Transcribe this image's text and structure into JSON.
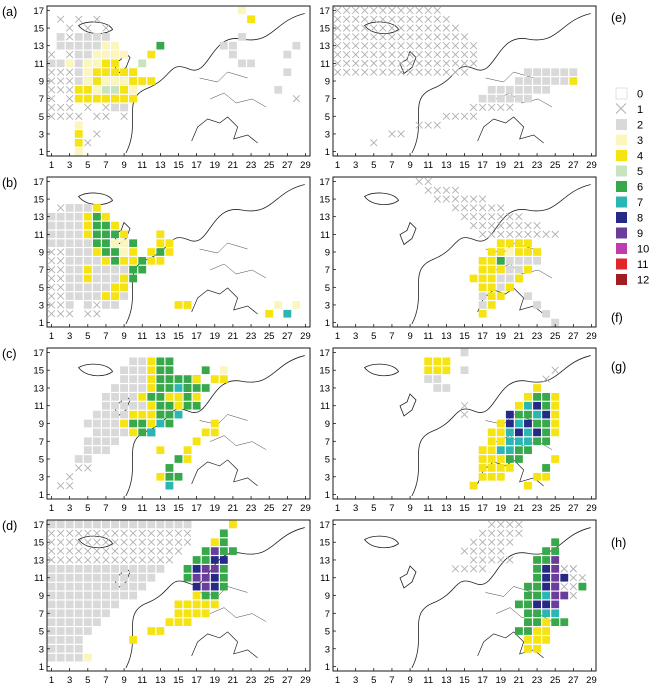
{
  "chart_data": {
    "type": "heatmap",
    "xlim": [
      1,
      29
    ],
    "ylim": [
      1,
      17
    ],
    "x_ticks": [
      "1",
      "3",
      "5",
      "7",
      "9",
      "11",
      "13",
      "15",
      "17",
      "19",
      "21",
      "23",
      "25",
      "27",
      "29"
    ],
    "y_ticks": [
      "1",
      "3",
      "5",
      "7",
      "9",
      "11",
      "13",
      "15",
      "17"
    ],
    "legend": {
      "position": "right",
      "entries": [
        {
          "label": "0",
          "color": "#ffffff",
          "marker": "none"
        },
        {
          "label": "1",
          "color": "#ffffff",
          "marker": "cross"
        },
        {
          "label": "2",
          "color": "#d9d9d9",
          "marker": "square"
        },
        {
          "label": "3",
          "color": "#fbf5be",
          "marker": "square"
        },
        {
          "label": "4",
          "color": "#f6e312",
          "marker": "square"
        },
        {
          "label": "5",
          "color": "#c7e3c0",
          "marker": "square"
        },
        {
          "label": "6",
          "color": "#37a94a",
          "marker": "square"
        },
        {
          "label": "7",
          "color": "#2ab7b4",
          "marker": "square"
        },
        {
          "label": "8",
          "color": "#262a86",
          "marker": "square"
        },
        {
          "label": "9",
          "color": "#6a3d9a",
          "marker": "square"
        },
        {
          "label": "10",
          "color": "#c13bb0",
          "marker": "square"
        },
        {
          "label": "11",
          "color": "#e2272c",
          "marker": "square"
        },
        {
          "label": "12",
          "color": "#a11d22",
          "marker": "square"
        }
      ]
    },
    "panels": [
      {
        "label": "(a)",
        "cells": [
          [
            1,
            5,
            "1111011010"
          ],
          [
            1,
            6,
            "111010122"
          ],
          [
            1,
            7,
            "1010112244"
          ],
          [
            1,
            8,
            "1111221244"
          ],
          [
            1,
            9,
            "1112252244"
          ],
          [
            1,
            10,
            "1112323334"
          ],
          [
            1,
            11,
            "2232334"
          ],
          [
            1,
            12,
            "10122334"
          ],
          [
            2,
            13,
            "2222233"
          ],
          [
            2,
            14,
            "212222"
          ],
          [
            3,
            15,
            "10101"
          ],
          [
            2,
            16,
            "10101"
          ],
          [
            3,
            1,
            "03"
          ],
          [
            3,
            2,
            "04"
          ],
          [
            3,
            3,
            "04"
          ],
          [
            4,
            4,
            "3"
          ],
          [
            5,
            2,
            "1"
          ],
          [
            6,
            3,
            "10"
          ],
          [
            7,
            4,
            "0"
          ],
          [
            4,
            7,
            "44444"
          ],
          [
            4,
            8,
            "4435543"
          ],
          [
            5,
            9,
            "34335444"
          ],
          [
            6,
            10,
            "44443"
          ],
          [
            7,
            11,
            "44"
          ],
          [
            8,
            12,
            "33"
          ],
          [
            9,
            9,
            "3"
          ],
          [
            10,
            10,
            "4"
          ],
          [
            11,
            11,
            "5"
          ],
          [
            12,
            12,
            "4"
          ],
          [
            13,
            13,
            "6"
          ],
          [
            21,
            12,
            "2"
          ],
          [
            20,
            13,
            "22"
          ],
          [
            22,
            14,
            "2"
          ],
          [
            28,
            7,
            "1"
          ],
          [
            26,
            8,
            "2"
          ],
          [
            27,
            10,
            "2"
          ],
          [
            27,
            12,
            "2"
          ],
          [
            28,
            13,
            "2"
          ],
          [
            22,
            17,
            "3"
          ],
          [
            22,
            11,
            "22"
          ],
          [
            23,
            16,
            "4"
          ]
        ]
      },
      {
        "label": "(b)",
        "cells": [
          [
            1,
            2,
            "111011"
          ],
          [
            1,
            3,
            "11202122"
          ],
          [
            1,
            4,
            "112222422"
          ],
          [
            1,
            5,
            "112222244"
          ],
          [
            1,
            6,
            "1122422242"
          ],
          [
            1,
            7,
            "1122422224"
          ],
          [
            1,
            8,
            "1122224644"
          ],
          [
            1,
            9,
            "1122246634"
          ],
          [
            1,
            10,
            "2222266336"
          ],
          [
            1,
            11,
            "222246664"
          ],
          [
            1,
            12,
            "22224664"
          ],
          [
            1,
            13,
            "2222464"
          ],
          [
            2,
            14,
            "12224"
          ],
          [
            8,
            5,
            "44"
          ],
          [
            9,
            6,
            "46"
          ],
          [
            10,
            7,
            "66"
          ],
          [
            11,
            8,
            "644"
          ],
          [
            12,
            9,
            "464"
          ],
          [
            13,
            10,
            "44"
          ],
          [
            13,
            11,
            "4"
          ],
          [
            7,
            4,
            "44"
          ],
          [
            15,
            3,
            "44"
          ],
          [
            16,
            3,
            "4"
          ],
          [
            25,
            2,
            "4"
          ],
          [
            26,
            3,
            "3"
          ],
          [
            27,
            2,
            "7"
          ],
          [
            28,
            3,
            "3"
          ]
        ]
      },
      {
        "label": "(c)",
        "cells": [
          [
            2,
            2,
            "11"
          ],
          [
            3,
            3,
            "1"
          ],
          [
            4,
            4,
            "11"
          ],
          [
            4,
            5,
            "22"
          ],
          [
            5,
            6,
            "222"
          ],
          [
            5,
            7,
            "2222"
          ],
          [
            6,
            8,
            "22224"
          ],
          [
            5,
            9,
            "2222466"
          ],
          [
            6,
            10,
            "22224446"
          ],
          [
            7,
            11,
            "222224664"
          ],
          [
            7,
            12,
            "2222466466"
          ],
          [
            8,
            13,
            "2222466786"
          ],
          [
            9,
            14,
            "222466666"
          ],
          [
            9,
            15,
            "222466"
          ],
          [
            10,
            16,
            "22466"
          ],
          [
            13,
            3,
            "466"
          ],
          [
            14,
            4,
            "6"
          ],
          [
            15,
            5,
            "64"
          ],
          [
            16,
            6,
            "4"
          ],
          [
            17,
            7,
            "4"
          ],
          [
            18,
            8,
            "44"
          ],
          [
            19,
            9,
            "4"
          ],
          [
            14,
            2,
            "7"
          ],
          [
            13,
            6,
            "4"
          ],
          [
            12,
            8,
            "8"
          ],
          [
            14,
            9,
            "6"
          ],
          [
            15,
            10,
            "7"
          ],
          [
            16,
            11,
            "66"
          ],
          [
            17,
            12,
            "4"
          ],
          [
            18,
            13,
            "6"
          ],
          [
            19,
            14,
            "44"
          ],
          [
            20,
            15,
            "3"
          ],
          [
            11,
            8,
            "67"
          ],
          [
            12,
            9,
            "47"
          ],
          [
            13,
            10,
            "66"
          ],
          [
            14,
            11,
            "64"
          ],
          [
            15,
            12,
            "4"
          ],
          [
            16,
            13,
            "6"
          ],
          [
            17,
            14,
            "4"
          ],
          [
            18,
            15,
            "6"
          ]
        ]
      },
      {
        "label": "(d)",
        "cells": [
          [
            1,
            2,
            "2222"
          ],
          [
            1,
            3,
            "2222"
          ],
          [
            1,
            4,
            "2222"
          ],
          [
            1,
            5,
            "22222"
          ],
          [
            1,
            6,
            "222222"
          ],
          [
            1,
            7,
            "2222222"
          ],
          [
            1,
            8,
            "22222222"
          ],
          [
            1,
            9,
            "2222222222"
          ],
          [
            1,
            10,
            "22222222222"
          ],
          [
            1,
            11,
            "222222222222"
          ],
          [
            1,
            12,
            "2222222222222"
          ],
          [
            1,
            13,
            "11111111111111"
          ],
          [
            1,
            14,
            "111111111111111"
          ],
          [
            1,
            15,
            "1111111111111111"
          ],
          [
            1,
            16,
            "1111111111111111"
          ],
          [
            1,
            17,
            "2222222222222222"
          ],
          [
            5,
            2,
            "3"
          ],
          [
            10,
            4,
            "4"
          ],
          [
            12,
            5,
            "44"
          ],
          [
            14,
            6,
            "444"
          ],
          [
            15,
            7,
            "4444"
          ],
          [
            15,
            8,
            "44444"
          ],
          [
            17,
            9,
            "466"
          ],
          [
            17,
            10,
            "8986"
          ],
          [
            16,
            11,
            "69986"
          ],
          [
            16,
            12,
            "68996"
          ],
          [
            17,
            13,
            "6688"
          ],
          [
            18,
            14,
            "6966"
          ],
          [
            19,
            15,
            "46"
          ],
          [
            20,
            16,
            "6"
          ],
          [
            21,
            17,
            "4"
          ]
        ]
      },
      {
        "label": "(e)",
        "cells": [
          [
            1,
            10,
            "111111111111111"
          ],
          [
            1,
            11,
            "1111111111111111"
          ],
          [
            1,
            12,
            "1111111111111111"
          ],
          [
            1,
            13,
            "1111111111111111"
          ],
          [
            1,
            14,
            "111111111111111"
          ],
          [
            1,
            15,
            "11111111111111"
          ],
          [
            1,
            16,
            "1111111111111"
          ],
          [
            1,
            17,
            "111111111111"
          ],
          [
            5,
            2,
            "1"
          ],
          [
            7,
            3,
            "11"
          ],
          [
            10,
            4,
            "111"
          ],
          [
            13,
            5,
            "1111"
          ],
          [
            16,
            6,
            "11111"
          ],
          [
            17,
            7,
            "222222"
          ],
          [
            18,
            8,
            "2222222"
          ],
          [
            21,
            9,
            "2222224"
          ],
          [
            22,
            10,
            "222222"
          ]
        ]
      },
      {
        "label": "(f)",
        "cells": [
          [
            10,
            17,
            "11"
          ],
          [
            11,
            16,
            "1111"
          ],
          [
            12,
            15,
            "111111"
          ],
          [
            14,
            14,
            "111111"
          ],
          [
            15,
            13,
            "1111111"
          ],
          [
            16,
            12,
            "11111111"
          ],
          [
            17,
            11,
            "111111111"
          ],
          [
            17,
            2,
            "4"
          ],
          [
            17,
            3,
            "24"
          ],
          [
            17,
            4,
            "244"
          ],
          [
            17,
            5,
            "4424"
          ],
          [
            17,
            6,
            "44224"
          ],
          [
            17,
            7,
            "442224"
          ],
          [
            17,
            8,
            "4422222"
          ],
          [
            18,
            9,
            "443444"
          ],
          [
            19,
            10,
            "4444"
          ],
          [
            19,
            8,
            "6"
          ],
          [
            19,
            7,
            "4"
          ],
          [
            16,
            6,
            "4"
          ],
          [
            20,
            5,
            "4"
          ],
          [
            21,
            6,
            "4"
          ],
          [
            22,
            4,
            "2"
          ],
          [
            23,
            3,
            "2"
          ],
          [
            24,
            2,
            "2"
          ],
          [
            25,
            1,
            "2"
          ]
        ]
      },
      {
        "label": "(g)",
        "cells": [
          [
            11,
            16,
            "444"
          ],
          [
            11,
            15,
            "444"
          ],
          [
            11,
            14,
            "22"
          ],
          [
            12,
            13,
            "22"
          ],
          [
            15,
            17,
            "2"
          ],
          [
            15,
            15,
            "2"
          ],
          [
            16,
            2,
            "4"
          ],
          [
            17,
            3,
            "444"
          ],
          [
            17,
            4,
            "4444"
          ],
          [
            17,
            5,
            "44466"
          ],
          [
            17,
            6,
            "447766"
          ],
          [
            18,
            7,
            "4477766"
          ],
          [
            18,
            8,
            "44787864"
          ],
          [
            19,
            9,
            "4878664"
          ],
          [
            20,
            10,
            "866784"
          ],
          [
            21,
            11,
            "47864"
          ],
          [
            22,
            12,
            "4664"
          ],
          [
            23,
            13,
            "4"
          ],
          [
            22,
            2,
            "4"
          ],
          [
            23,
            3,
            "44"
          ],
          [
            24,
            4,
            "6"
          ],
          [
            25,
            5,
            "4"
          ],
          [
            15,
            10,
            "1"
          ],
          [
            15,
            11,
            "1"
          ],
          [
            24,
            14,
            "1"
          ],
          [
            25,
            15,
            "1"
          ]
        ]
      },
      {
        "label": "(h)",
        "cells": [
          [
            15,
            14,
            "11111"
          ],
          [
            16,
            15,
            "11111"
          ],
          [
            17,
            16,
            "11111"
          ],
          [
            18,
            17,
            "1111"
          ],
          [
            16,
            13,
            "11111"
          ],
          [
            14,
            12,
            "1111"
          ],
          [
            22,
            3,
            "44"
          ],
          [
            22,
            4,
            "444"
          ],
          [
            21,
            5,
            "6644"
          ],
          [
            22,
            6,
            "66466"
          ],
          [
            22,
            7,
            "6677"
          ],
          [
            21,
            8,
            "66889"
          ],
          [
            22,
            9,
            "667991"
          ],
          [
            22,
            10,
            "6689116"
          ],
          [
            23,
            11,
            "689111"
          ],
          [
            23,
            12,
            "68911"
          ],
          [
            23,
            13,
            "669"
          ],
          [
            24,
            14,
            "66"
          ],
          [
            25,
            15,
            "6"
          ],
          [
            26,
            11,
            "8"
          ],
          [
            25,
            10,
            "9"
          ],
          [
            26,
            12,
            "11"
          ]
        ]
      }
    ]
  }
}
